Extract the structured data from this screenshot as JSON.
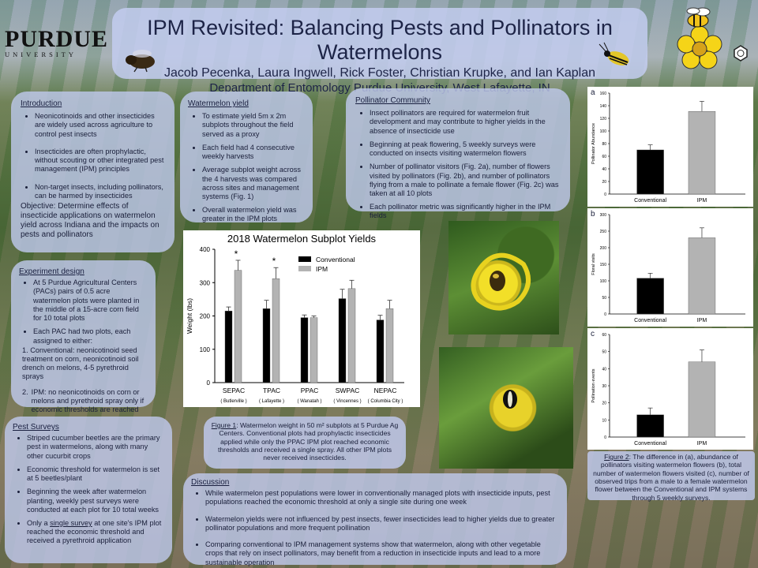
{
  "header": {
    "title": "IPM Revisited: Balancing Pests and Pollinators in Watermelons",
    "authors": "Jacob Pecenka, Laura Ingwell, Rick Foster, Christian Krupke, and Ian Kaplan",
    "department": "Department of Entomology Purdue University, West Lafayette, IN",
    "logo_word": "PURDUE",
    "logo_sub": "UNIVERSITY"
  },
  "introduction": {
    "heading": "Introduction",
    "items": [
      "Neonicotinoids and other insecticides are widely used across agriculture to control pest insects",
      "Insecticides are often prophylactic, without scouting or other integrated pest management (IPM) principles",
      "Non-target insects, including pollinators, can be harmed by insecticides"
    ],
    "objective": "Objective: Determine effects of insecticide applications on watermelon yield across Indiana and the impacts on pests and pollinators"
  },
  "experiment": {
    "heading": "Experiment design",
    "items": [
      "At 5 Purdue Agricultural Centers (PACs) pairs of 0.5 acre watermelon plots were planted in the middle of a 15-acre corn field for 10 total plots",
      "Each PAC had  two plots,  each assigned to either:",
      "IPM: no neonicotinoids on corn or melons and pyrethroid spray only if economic thresholds are reached"
    ],
    "sub_item": "1. Conventional: neonicotinoid seed treatment on corn, neonicotinoid soil drench on melons, 4-5 pyrethroid sprays",
    "sub_num": "2."
  },
  "pest": {
    "heading": "Pest Surveys",
    "items": [
      "Striped cucumber beetles are the primary pest in watermelons, along with many other cucurbit crops",
      "Economic threshold for watermelon is set at 5 beetles/plant",
      "Beginning the week after watermelon planting, weekly pest surveys were conducted at each plot for 10 total weeks"
    ],
    "last_prefix": "Only a ",
    "last_underline": "single survey",
    "last_suffix": " at one site's IPM plot reached the economic threshold and received a pyrethroid application"
  },
  "yield": {
    "heading": "Watermelon yield",
    "items": [
      "To estimate yield 5m x 2m subplots throughout the field served as a proxy",
      "Each field had 4 consecutive weekly harvests",
      "Average subplot weight across the 4 harvests was compared across sites and management systems (Fig. 1)",
      "Overall watermelon yield was greater in the IPM plots"
    ]
  },
  "pollinator": {
    "heading": "Pollinator Community",
    "items": [
      "Insect pollinators are required for watermelon fruit development and may contribute to higher yields in the absence of insecticide use",
      "Beginning at peak flowering, 5 weekly surveys were conducted on insects visiting watermelon flowers",
      "Number of pollinator visitors (Fig. 2a),  number of flowers visited by pollinators (Fig. 2b), and number of pollinators flying from a male to pollinate a female flower (Fig. 2c) was taken at all 10 plots",
      "Each pollinator metric was significantly higher in the IPM fields"
    ]
  },
  "figure1": {
    "caption_label": "Figure 1",
    "caption": ": Watermelon weight in 50 m² subplots at 5 Purdue Ag Centers. Conventional plots had prophylactic insecticides applied while only the PPAC IPM plot reached economic thresholds and received a single spray. All other IPM plots never received insecticides."
  },
  "figure2": {
    "caption_label": "Figure 2",
    "caption": ": The difference in (a), abundance of pollinators visiting watermelon flowers (b), total number of watermelon flowers visited (c), number of observed trips from a male to a female watermelon flower between the Conventional and IPM systems through 5 weekly surveys."
  },
  "discussion": {
    "heading": "Discussion",
    "items": [
      "While watermelon pest populations were lower in conventionally managed plots with insecticide inputs, pest populations reached the economic threshold at only a single site during one week",
      "Watermelon yields were not influenced by pest insects, fewer insecticides lead to higher yields due to  greater pollinator populations and more frequent pollination",
      "Comparing conventional to IPM management systems show that watermelon, along with other vegetable crops that rely on insect pollinators, may benefit from a reduction in insecticide inputs and lead to a more sustainable operation"
    ]
  },
  "chart_data": [
    {
      "type": "bar",
      "title": "2018 Watermelon Subplot Yields",
      "ylabel": "Weight (lbs)",
      "ylim": [
        0,
        400
      ],
      "yticks": [
        0,
        100,
        200,
        300,
        400
      ],
      "categories": [
        "SEPAC",
        "TPAC",
        "PPAC",
        "SWPAC",
        "NEPAC"
      ],
      "sublabels": [
        "( Butlerville )",
        "( Lafayette )",
        "( Wanatah )",
        "( Vincennes )",
        "( Columbia City )"
      ],
      "series": [
        {
          "name": "Conventional",
          "color": "#000000",
          "values": [
            215,
            222,
            195,
            252,
            188
          ],
          "errors": [
            12,
            25,
            8,
            28,
            14
          ]
        },
        {
          "name": "IPM",
          "color": "#b3b3b3",
          "values": [
            337,
            312,
            195,
            282,
            222
          ],
          "errors": [
            30,
            33,
            5,
            25,
            25
          ]
        }
      ],
      "significance": [
        "*",
        "*",
        "",
        "",
        ""
      ],
      "legend": "top-right"
    },
    {
      "type": "bar",
      "panel": "a",
      "ylabel": "Pollinator Abundance",
      "ylim": [
        0,
        160
      ],
      "yticks": [
        0,
        20,
        40,
        60,
        80,
        100,
        120,
        140,
        160
      ],
      "categories": [
        "Conventional",
        "IPM"
      ],
      "values": [
        70,
        131
      ],
      "errors": [
        8,
        16
      ],
      "colors": [
        "#000000",
        "#b3b3b3"
      ]
    },
    {
      "type": "bar",
      "panel": "b",
      "ylabel": "Floral visits",
      "ylim": [
        0,
        300
      ],
      "yticks": [
        0,
        50,
        100,
        150,
        200,
        250,
        300
      ],
      "categories": [
        "Conventional",
        "IPM"
      ],
      "values": [
        108,
        230
      ],
      "errors": [
        15,
        30
      ],
      "colors": [
        "#000000",
        "#b3b3b3"
      ]
    },
    {
      "type": "bar",
      "panel": "c",
      "ylabel": "Pollination events",
      "ylim": [
        0,
        60
      ],
      "yticks": [
        0,
        10,
        20,
        30,
        40,
        50,
        60
      ],
      "categories": [
        "Conventional",
        "IPM"
      ],
      "values": [
        13,
        44
      ],
      "errors": [
        4,
        7
      ],
      "colors": [
        "#000000",
        "#b3b3b3"
      ]
    }
  ]
}
